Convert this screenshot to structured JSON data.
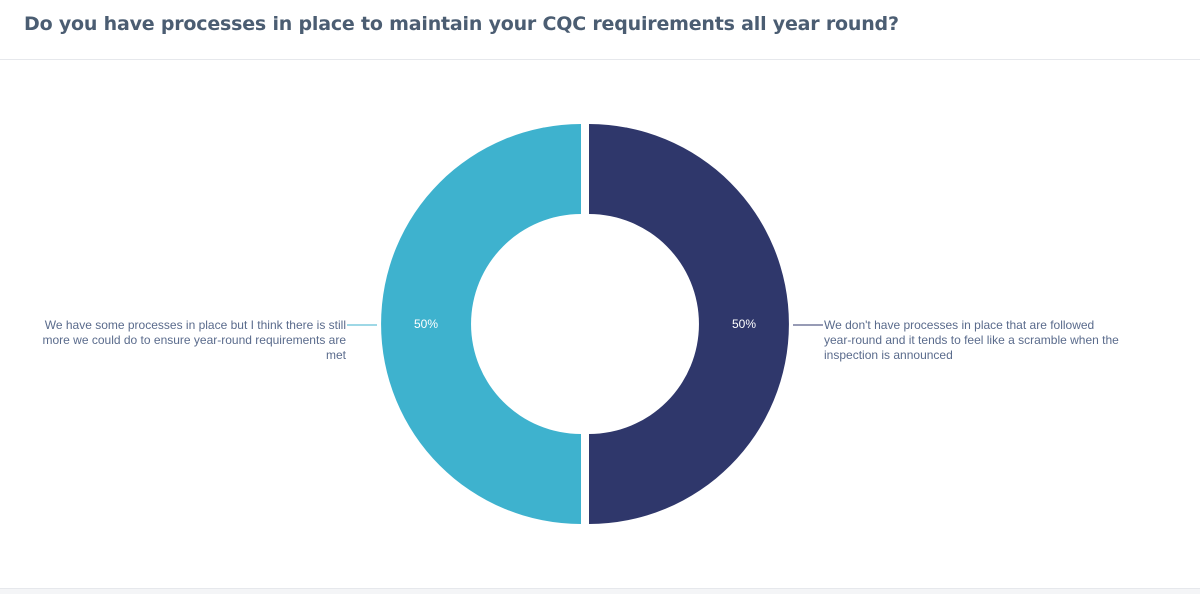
{
  "title": "Do you have processes in place to maintain your CQC requirements all year round?",
  "chart_data": {
    "type": "pie",
    "donut": true,
    "slices": [
      {
        "label": "We don't have processes in place that are followed year-round and it tends to feel like a scramble when the inspection is announced",
        "value": 50,
        "value_label": "50%",
        "color": "#2f376b"
      },
      {
        "label": "We have some processes in place but I think there is still more we could do to ensure year-round requirements are met",
        "value": 50,
        "value_label": "50%",
        "color": "#3eb2ce"
      }
    ]
  }
}
